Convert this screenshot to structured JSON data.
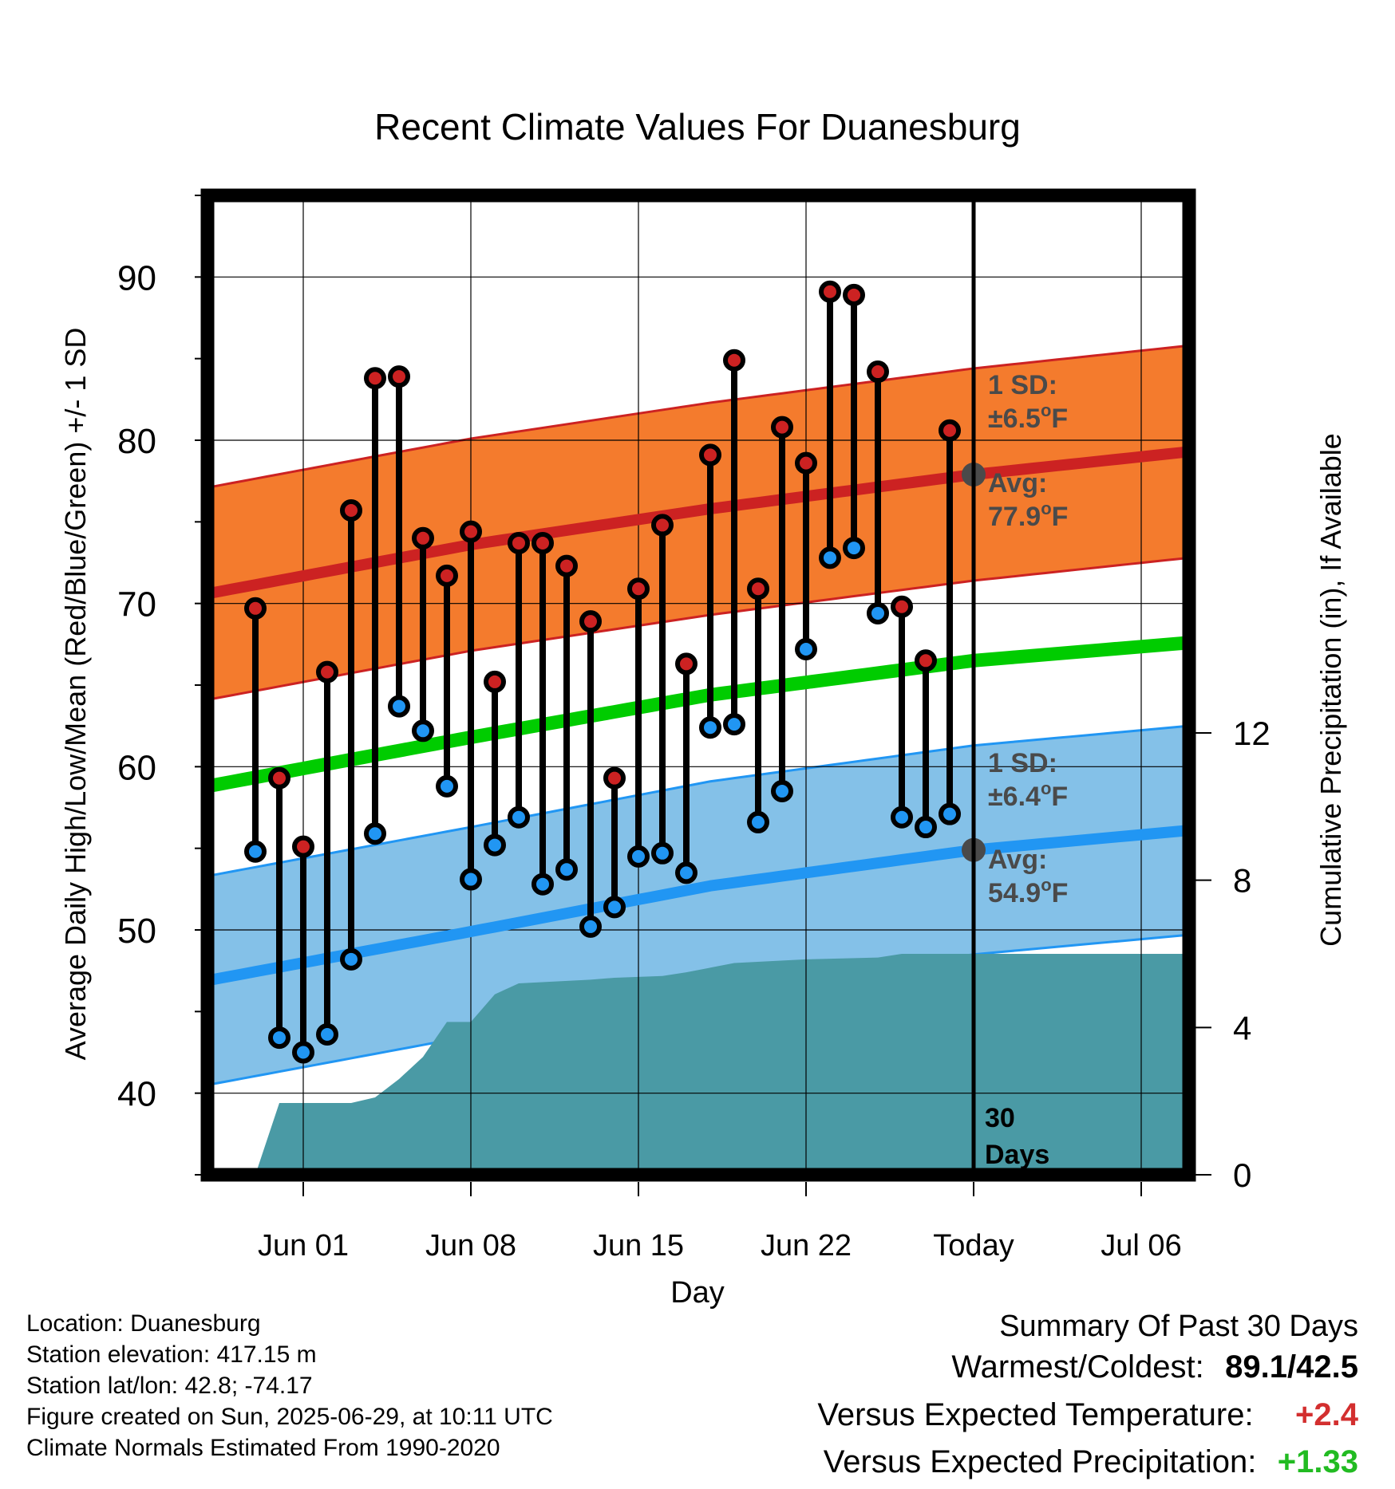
{
  "chart_data": {
    "type": "line",
    "title": "Recent Climate Values For Duanesburg",
    "xlabel": "Day",
    "ylabel": "Average Daily High/Low/Mean (Red/Blue/Green) +/- 1 SD",
    "y2label": "Cumulative Precipitation (in), If Available",
    "ylim": [
      35,
      95
    ],
    "y2lim": [
      0,
      26.6
    ],
    "y_ticks": [
      "90",
      "80",
      "70",
      "60",
      "50",
      "40"
    ],
    "y2_ticks": [
      "12",
      "8",
      "4",
      "0"
    ],
    "x_tick_labels": [
      "Jun 01",
      "Jun 08",
      "Jun 15",
      "Jun 22",
      "Today",
      "Jul 06"
    ],
    "x_range_days": [
      "2025-05-28",
      "2025-07-08"
    ],
    "x_tick_dates": [
      "2025-06-01",
      "2025-06-08",
      "2025-06-15",
      "2025-06-22",
      "2025-06-29",
      "2025-07-06"
    ],
    "grid": true,
    "today_date": "2025-06-29",
    "dates": [
      "2025-05-30",
      "2025-05-31",
      "2025-06-01",
      "2025-06-02",
      "2025-06-03",
      "2025-06-04",
      "2025-06-05",
      "2025-06-06",
      "2025-06-07",
      "2025-06-08",
      "2025-06-09",
      "2025-06-10",
      "2025-06-11",
      "2025-06-12",
      "2025-06-13",
      "2025-06-14",
      "2025-06-15",
      "2025-06-16",
      "2025-06-17",
      "2025-06-18",
      "2025-06-19",
      "2025-06-20",
      "2025-06-21",
      "2025-06-22",
      "2025-06-23",
      "2025-06-24",
      "2025-06-25",
      "2025-06-26",
      "2025-06-27",
      "2025-06-28"
    ],
    "series": [
      {
        "name": "Daily High",
        "color": "#cc2222",
        "values": [
          69.7,
          59.3,
          55.1,
          65.8,
          75.7,
          83.8,
          83.9,
          74.0,
          71.7,
          74.4,
          65.2,
          73.7,
          73.7,
          72.3,
          68.9,
          59.3,
          70.9,
          74.8,
          66.3,
          79.1,
          84.9,
          70.9,
          80.8,
          78.6,
          89.1,
          88.9,
          84.2,
          69.8,
          66.5,
          80.6
        ]
      },
      {
        "name": "Daily Low",
        "color": "#2196f3",
        "values": [
          54.8,
          43.4,
          42.5,
          43.6,
          48.2,
          55.9,
          63.7,
          62.2,
          58.8,
          53.1,
          55.2,
          56.9,
          52.8,
          53.7,
          50.2,
          51.4,
          54.5,
          54.7,
          53.5,
          62.4,
          62.6,
          56.6,
          58.5,
          67.2,
          72.8,
          73.4,
          69.4,
          56.9,
          56.3,
          57.1
        ]
      },
      {
        "name": "Normal High",
        "color": "#cc2222",
        "x": [
          "2025-05-28",
          "2025-06-08",
          "2025-06-18",
          "2025-06-29",
          "2025-07-08"
        ],
        "values": [
          70.6,
          73.6,
          75.8,
          77.9,
          79.3
        ],
        "sd": 6.5,
        "band_color": "#f47b2d"
      },
      {
        "name": "Normal Low",
        "color": "#2196f3",
        "x": [
          "2025-05-28",
          "2025-06-08",
          "2025-06-18",
          "2025-06-29",
          "2025-07-08"
        ],
        "values": [
          46.9,
          49.9,
          52.7,
          54.9,
          56.1
        ],
        "sd": 6.4,
        "band_color": "#84c1e8"
      },
      {
        "name": "Normal Mean",
        "color": "#00cc00",
        "x": [
          "2025-05-28",
          "2025-06-08",
          "2025-06-18",
          "2025-06-29",
          "2025-07-08"
        ],
        "values": [
          58.8,
          61.8,
          64.4,
          66.5,
          67.6
        ]
      },
      {
        "name": "Cumulative Precipitation",
        "color": "#4a9aa5",
        "x": [
          "2025-05-30",
          "2025-05-31",
          "2025-06-03",
          "2025-06-04",
          "2025-06-05",
          "2025-06-06",
          "2025-06-07",
          "2025-06-08",
          "2025-06-09",
          "2025-06-10",
          "2025-06-13",
          "2025-06-14",
          "2025-06-16",
          "2025-06-17",
          "2025-06-19",
          "2025-06-22",
          "2025-06-25",
          "2025-06-26",
          "2025-06-29",
          "2025-07-08"
        ],
        "values": [
          0.0,
          1.95,
          1.95,
          2.1,
          2.6,
          3.2,
          4.15,
          4.15,
          4.9,
          5.2,
          5.3,
          5.35,
          5.4,
          5.5,
          5.75,
          5.85,
          5.9,
          6.0,
          6.0,
          6.0
        ]
      }
    ],
    "annotations": {
      "high_sd": "1 SD:",
      "high_sd_val": "±6.5",
      "high_avg": "Avg:",
      "high_avg_val": "77.9",
      "low_sd": "1 SD:",
      "low_sd_val": "±6.4",
      "low_avg": "Avg:",
      "low_avg_val": "54.9",
      "deg_unit": "o",
      "f_unit": "F",
      "days_num": "30",
      "days_word": "Days"
    }
  },
  "info": {
    "location": "Location: Duanesburg",
    "elevation": "Station elevation: 417.15 m",
    "latlon": "Station lat/lon: 42.8; -74.17",
    "created": "Figure created on Sun, 2025-06-29, at 10:11 UTC",
    "normals": "Climate Normals Estimated From 1990-2020"
  },
  "summary": {
    "title": "Summary Of Past 30 Days",
    "warm_cold_label": "Warmest/Coldest:",
    "warm_cold_value": "89.1/42.5",
    "temp_label": "Versus Expected Temperature:",
    "temp_value": "+2.4",
    "temp_color": "#d32f2f",
    "precip_label": "Versus Expected Precipitation:",
    "precip_value": "+1.33",
    "precip_color": "#22bb22"
  }
}
